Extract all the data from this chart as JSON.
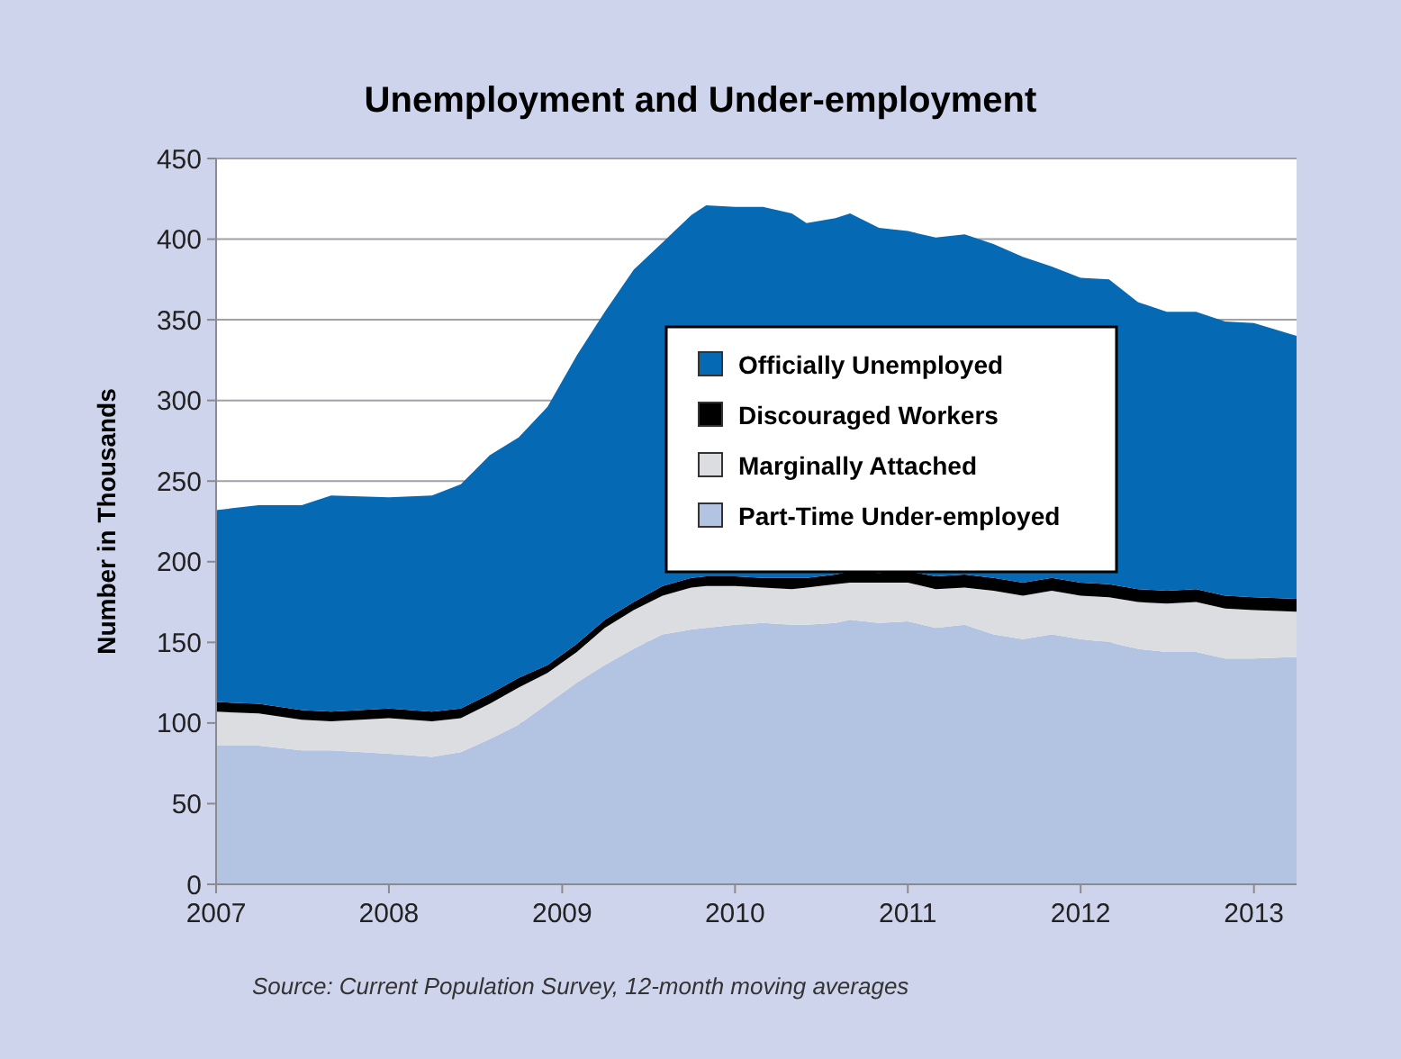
{
  "chart_data": {
    "type": "area",
    "stacked": true,
    "title": "Unemployment and Under-employment",
    "ylabel": "Number in Thousands",
    "annotations": [
      "Source: Current Population Survey, 12-month moving averages"
    ],
    "x": [
      "2007-01",
      "2007-04",
      "2007-07",
      "2007-09",
      "2008-01",
      "2008-04",
      "2008-06",
      "2008-08",
      "2008-10",
      "2008-12",
      "2009-02",
      "2009-04",
      "2009-06",
      "2009-08",
      "2009-10",
      "2009-11",
      "2010-01",
      "2010-03",
      "2010-05",
      "2010-06",
      "2010-08",
      "2010-09",
      "2010-11",
      "2011-01",
      "2011-03",
      "2011-05",
      "2011-07",
      "2011-09",
      "2011-11",
      "2012-01",
      "2012-03",
      "2012-05",
      "2012-07",
      "2012-09",
      "2012-11",
      "2013-01",
      "2013-04"
    ],
    "series": [
      {
        "name": "Part-Time Under-employed",
        "color": "#b3c3e2",
        "values": [
          86,
          86,
          83,
          83,
          81,
          79,
          82,
          90,
          99,
          112,
          125,
          136,
          146,
          155,
          158,
          159,
          161,
          162,
          161,
          161,
          162,
          164,
          162,
          163,
          159,
          161,
          155,
          152,
          155,
          152,
          150,
          146,
          144,
          144,
          140,
          140,
          141
        ]
      },
      {
        "name": "Marginally Attached",
        "color": "#dcdde0",
        "values": [
          21,
          20,
          19,
          18,
          22,
          22,
          21,
          22,
          23,
          19,
          19,
          23,
          24,
          24,
          26,
          26,
          24,
          22,
          22,
          23,
          24,
          23,
          25,
          24,
          24,
          23,
          27,
          27,
          27,
          27,
          28,
          29,
          30,
          31,
          31,
          30,
          28
        ]
      },
      {
        "name": "Discouraged Workers",
        "color": "#000000",
        "values": [
          6,
          6,
          6,
          6,
          6,
          6,
          6,
          6,
          6,
          5,
          5,
          5,
          5,
          6,
          6,
          6,
          6,
          6,
          7,
          6,
          6,
          7,
          6,
          7,
          8,
          8,
          8,
          8,
          8,
          8,
          8,
          8,
          8,
          8,
          8,
          8,
          8
        ]
      },
      {
        "name": "Officially Unemployed",
        "color": "#0569b3",
        "values": [
          119,
          123,
          127,
          134,
          131,
          134,
          139,
          148,
          149,
          160,
          179,
          191,
          206,
          213,
          225,
          230,
          229,
          230,
          226,
          220,
          221,
          222,
          214,
          211,
          210,
          211,
          207,
          202,
          193,
          189,
          189,
          178,
          173,
          172,
          170,
          170,
          163
        ]
      }
    ],
    "xlim": [
      "2007-01",
      "2013-04"
    ],
    "xticks": [
      {
        "value": "2007-01",
        "label": "2007"
      },
      {
        "value": "2008-01",
        "label": "2008"
      },
      {
        "value": "2009-01",
        "label": "2009"
      },
      {
        "value": "2010-01",
        "label": "2010"
      },
      {
        "value": "2011-01",
        "label": "2011"
      },
      {
        "value": "2012-01",
        "label": "2012"
      },
      {
        "value": "2013-01",
        "label": "2013"
      }
    ],
    "ylim": [
      0,
      450
    ],
    "yticks": [
      0,
      50,
      100,
      150,
      200,
      250,
      300,
      350,
      400,
      450
    ],
    "grid": "y",
    "legend": "center"
  }
}
